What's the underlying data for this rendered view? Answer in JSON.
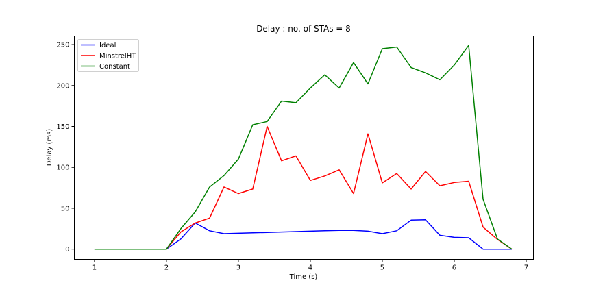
{
  "chart_data": {
    "type": "line",
    "title": "Delay : no. of STAs = 8",
    "xlabel": "Time (s)",
    "ylabel": "Delay (ms)",
    "xlim": [
      0.72,
      7.1
    ],
    "ylim": [
      -12.4,
      260.5
    ],
    "xticks": [
      1,
      2,
      3,
      4,
      5,
      6,
      7
    ],
    "yticks": [
      0,
      50,
      100,
      150,
      200,
      250
    ],
    "grid": false,
    "legend_position": "top-left",
    "x": [
      1.0,
      1.2,
      1.4,
      1.6,
      1.8,
      2.0,
      2.2,
      2.4,
      2.6,
      2.8,
      3.0,
      3.2,
      3.4,
      3.6,
      3.8,
      4.0,
      4.2,
      4.4,
      4.6,
      4.8,
      5.0,
      5.2,
      5.4,
      5.6,
      5.8,
      6.0,
      6.2,
      6.4,
      6.6,
      6.8
    ],
    "series": [
      {
        "name": "Ideal",
        "color": "#0000ff",
        "values": [
          0,
          0,
          0,
          0,
          0,
          0,
          12.5,
          32,
          22.5,
          19,
          19.5,
          20,
          20.5,
          21,
          21.5,
          22,
          22.5,
          23,
          23,
          22,
          19,
          22.5,
          35.5,
          36,
          17,
          14.5,
          14,
          0,
          0,
          0
        ]
      },
      {
        "name": "MinstrelHT",
        "color": "#ff0000",
        "values": [
          0,
          0,
          0,
          0,
          0,
          0,
          21,
          32,
          38,
          76,
          68,
          73.5,
          150,
          108,
          114,
          84,
          89.5,
          97,
          68,
          141,
          81,
          92.5,
          73.5,
          95,
          77.5,
          81.5,
          83,
          27,
          12,
          0
        ]
      },
      {
        "name": "Constant",
        "color": "#008000",
        "values": [
          0,
          0,
          0,
          0,
          0,
          0,
          25,
          45.5,
          76,
          90,
          110,
          152,
          156,
          181,
          179,
          197,
          213,
          197,
          228,
          202,
          245,
          247,
          222,
          215.5,
          207,
          225,
          249,
          61,
          12.5,
          0
        ]
      }
    ]
  }
}
